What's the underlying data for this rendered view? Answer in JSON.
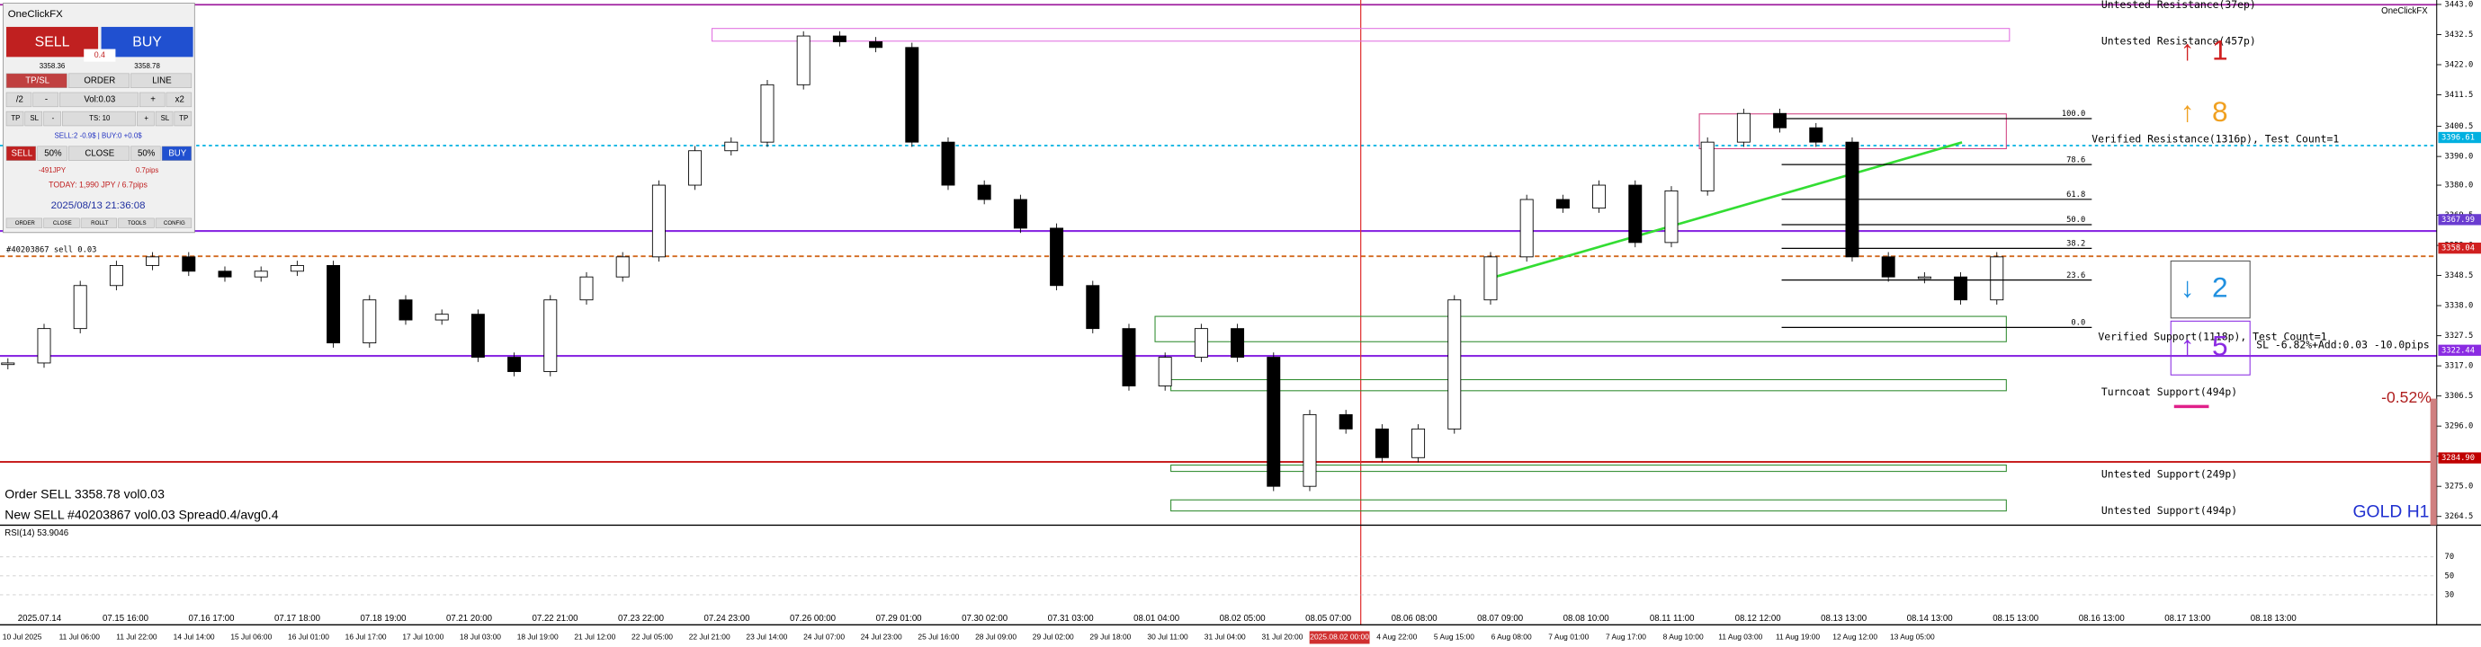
{
  "panel": {
    "title": "OneClickFX",
    "sell": "SELL",
    "buy": "BUY",
    "spread": "0.4",
    "bid": "3358.36",
    "ask": "3358.78",
    "tabs": [
      "TP/SL",
      "ORDER",
      "LINE"
    ],
    "volume_row": [
      "/2",
      "-",
      "Vol:0.03",
      "+",
      "x2"
    ],
    "stop_row": [
      "TP",
      "SL",
      "-",
      "TS: 10",
      "+",
      "SL",
      "TP"
    ],
    "positions": "SELL:2 -0.9$ | BUY:0 +0.0$",
    "close_row": [
      "SELL",
      "50%",
      "CLOSE",
      "50%",
      "BUY"
    ],
    "profit": "-491JPY",
    "pips": "0.7pips",
    "today": "TODAY: 1,990 JPY / 6.7pips",
    "clock": "2025/08/13 21:36:08",
    "menu": [
      "ORDER",
      "CLOSE",
      "ROLLT",
      "TOOLS",
      "CONFIG"
    ]
  },
  "chart": {
    "symbol": "GOLD H1",
    "brand": "OneClickFX",
    "position_label": "#40203867 sell 0.03",
    "closes": [
      3318,
      3330,
      3345,
      3352,
      3355,
      3350,
      3348,
      3350,
      3352,
      3325,
      3340,
      3333,
      3335,
      3320,
      3315,
      3340,
      3348,
      3355,
      3380,
      3392,
      3395,
      3415,
      3432,
      3430,
      3428,
      3395,
      3380,
      3375,
      3365,
      3345,
      3330,
      3310,
      3320,
      3330,
      3320,
      3275,
      3300,
      3295,
      3285,
      3295,
      3340,
      3355,
      3375,
      3372,
      3380,
      3360,
      3378,
      3395,
      3405,
      3400,
      3395,
      3355,
      3348,
      3348,
      3340,
      3355
    ],
    "price_ticks": [
      {
        "value": 3443,
        "label": "3443.0"
      },
      3432.5,
      {
        "value": 3422,
        "label": "3422.0"
      },
      3411.5,
      3400.5,
      {
        "value": 3390,
        "label": "3390.0"
      },
      {
        "value": 3380,
        "label": "3380.0"
      },
      3369.5,
      {
        "value": 3359,
        "label": "3359.0"
      },
      3348.5,
      {
        "value": 3338,
        "label": "3338.0"
      },
      3327.5,
      {
        "value": 3317,
        "label": "3317.0"
      },
      3306.5,
      {
        "value": 3296,
        "label": "3296.0"
      },
      3285.5,
      {
        "value": 3275,
        "label": "3275.0"
      },
      3264.5
    ],
    "price_tags": [
      3396.61,
      3367.99,
      3358.04,
      3322.44,
      {
        "value": 3284.9,
        "label": "3284.90"
      }
    ],
    "fib_levels": [
      {
        "value": 100,
        "label": "100.0"
      },
      78.6,
      61.8,
      {
        "value": 50,
        "label": "50.0"
      },
      38.2,
      23.6,
      {
        "value": 0,
        "label": "0.0"
      }
    ],
    "annotations": [
      "Untested Resistance(37ep)",
      "Untested Resistance(457p)",
      "Verified Resistance(1316p), Test Count=1",
      "Verified Support(1118p), Test Count=1",
      "SL -6.82%+Add:0.03 -10.0pips",
      "Turncoat Support(494p)",
      "Untested Support(249p)",
      "Untested Support(494p)"
    ],
    "change": "-0.52%",
    "arrows": [
      {
        "symbol": "↑",
        "number": "1"
      },
      {
        "symbol": "↑",
        "number": "8"
      },
      {
        "symbol": "↓",
        "number": "2"
      },
      {
        "symbol": "↑",
        "number": "5"
      }
    ],
    "log": [
      "Order SELL 3358.78 vol0.03",
      "New SELL #40203867 vol0.03 Spread0.4/avg0.4"
    ],
    "rsi": {
      "label": "RSI(14) 53.9046",
      "ticks": [
        70,
        50,
        30
      ]
    },
    "time_top": [
      "2025.07.14",
      "07.15 16:00",
      "07.16 17:00",
      "07.17 18:00",
      "07.18 19:00",
      "07.21 20:00",
      "07.22 21:00",
      "07.23 22:00",
      "07.24 23:00",
      "07.26 00:00",
      "07.29 01:00",
      "07.30 02:00",
      "07.31 03:00",
      "08.01 04:00",
      "08.02 05:00",
      "08.05 07:00",
      "08.06 08:00",
      "08.07 09:00",
      "08.08 10:00",
      "08.11 11:00",
      "08.12 12:00",
      "08.13 13:00",
      "08.14 13:00",
      "08.15 13:00",
      "08.16 13:00",
      "08.17 13:00",
      "08.18 13:00"
    ],
    "time_bottom": [
      "10 Jul 2025",
      "11 Jul 06:00",
      "11 Jul 22:00",
      "14 Jul 14:00",
      "15 Jul 06:00",
      "16 Jul 01:00",
      "16 Jul 17:00",
      "17 Jul 10:00",
      "18 Jul 03:00",
      "18 Jul 19:00",
      "21 Jul 12:00",
      "22 Jul 05:00",
      "22 Jul 21:00",
      "23 Jul 14:00",
      "24 Jul 07:00",
      "24 Jul 23:00",
      "25 Jul 16:00",
      "28 Jul 09:00",
      "29 Jul 02:00",
      "29 Jul 18:00",
      "30 Jul 11:00",
      "31 Jul 04:00",
      "31 Jul 20:00",
      "2025.08.02 00:00",
      "4 Aug 22:00",
      "5 Aug 15:00",
      "6 Aug 08:00",
      "7 Aug 01:00",
      "7 Aug 17:00",
      "8 Aug 10:00",
      "11 Aug 03:00",
      "11 Aug 19:00",
      "12 Aug 12:00",
      "13 Aug 05:00"
    ]
  }
}
